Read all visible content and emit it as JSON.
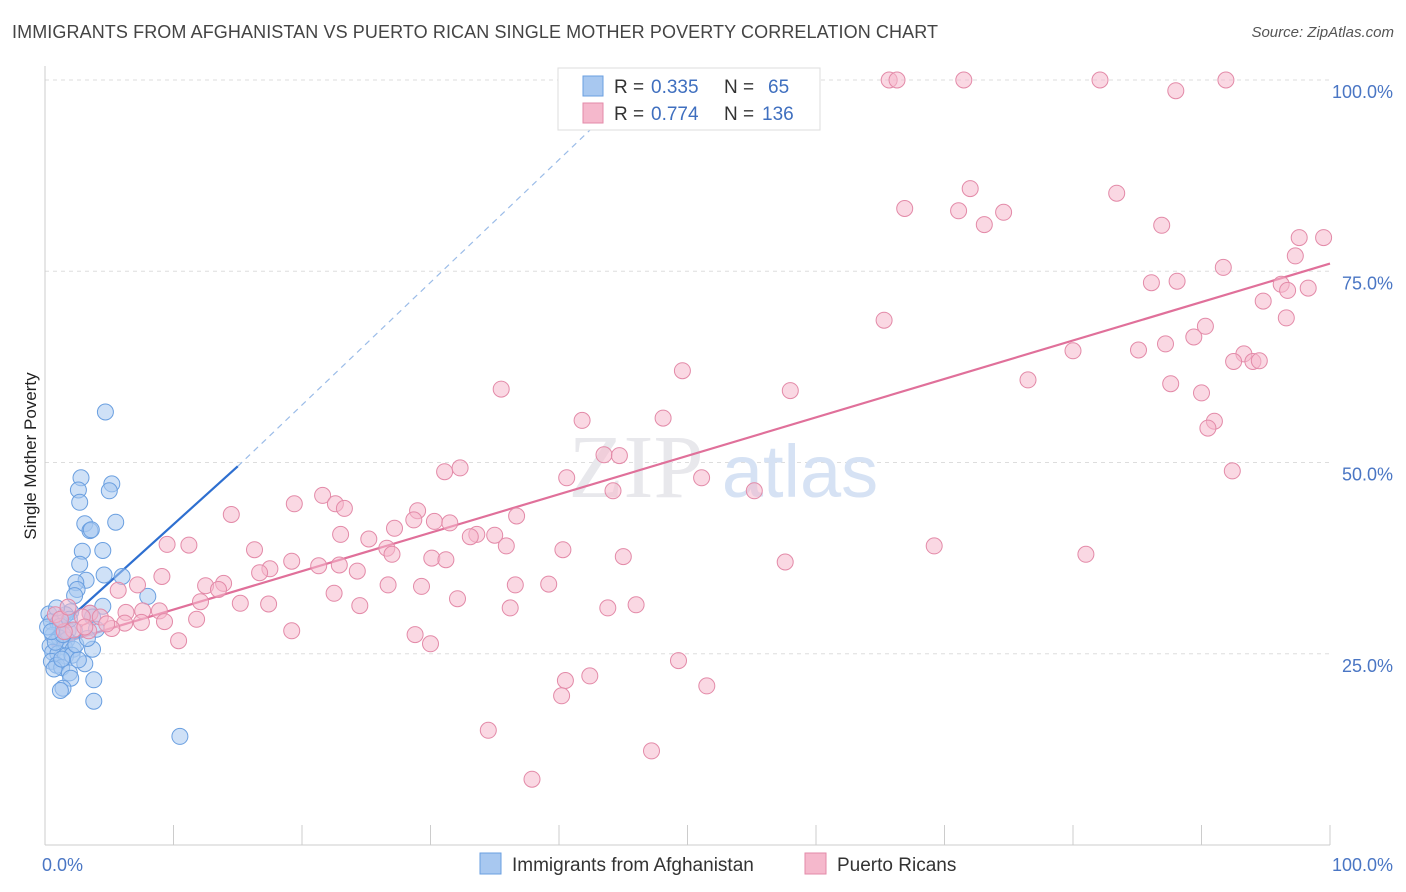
{
  "header": {
    "title": "IMMIGRANTS FROM AFGHANISTAN VS PUERTO RICAN SINGLE MOTHER POVERTY CORRELATION CHART",
    "source": "Source: ZipAtlas.com"
  },
  "watermark": {
    "zip": "ZIP",
    "atlas": "atlas"
  },
  "legend": {
    "rows": [
      {
        "r_label": "R =",
        "r_value": "0.335",
        "n_label": "N =",
        "n_value": "65",
        "color": "#a8c8f0"
      },
      {
        "r_label": "R =",
        "r_value": "0.774",
        "n_label": "N =",
        "n_value": "136",
        "color": "#f5b8cc"
      }
    ]
  },
  "bottom_legend": [
    {
      "label": "Immigrants from Afghanistan",
      "color": "#a8c8f0"
    },
    {
      "label": "Puerto Ricans",
      "color": "#f5b8cc"
    }
  ],
  "chart_data": {
    "type": "scatter",
    "title": "IMMIGRANTS FROM AFGHANISTAN VS PUERTO RICAN SINGLE MOTHER POVERTY CORRELATION CHART",
    "ylabel": "Single Mother Poverty",
    "xlabel": "",
    "xlim": [
      0,
      100
    ],
    "ylim": [
      0,
      105
    ],
    "x_tick_labels": [
      "0.0%",
      "100.0%"
    ],
    "y_ticks": [
      {
        "value": 25,
        "label": "25.0%"
      },
      {
        "value": 50,
        "label": "50.0%"
      },
      {
        "value": 75,
        "label": "75.0%"
      },
      {
        "value": 100,
        "label": "100.0%"
      }
    ],
    "grid": "dashed-horizontal",
    "legend_position": "top-center",
    "series": [
      {
        "name": "Immigrants from Afghanistan",
        "color": "#6a9fe0",
        "fill": "#a8c8f0",
        "trend": {
          "x": [
            0.5,
            15
          ],
          "y": [
            27.5,
            49.5
          ],
          "extended_to": [
            44,
            96
          ]
        },
        "points": [
          [
            2.8,
            48.0
          ],
          [
            2.6,
            46.4
          ],
          [
            2.7,
            44.8
          ],
          [
            5.2,
            47.2
          ],
          [
            5.0,
            46.3
          ],
          [
            4.7,
            56.6
          ],
          [
            3.1,
            42.0
          ],
          [
            3.5,
            41.1
          ],
          [
            3.6,
            41.2
          ],
          [
            5.5,
            42.2
          ],
          [
            4.5,
            38.5
          ],
          [
            2.9,
            38.4
          ],
          [
            2.7,
            36.7
          ],
          [
            3.2,
            34.6
          ],
          [
            4.6,
            35.3
          ],
          [
            6.0,
            35.1
          ],
          [
            2.4,
            34.3
          ],
          [
            2.5,
            33.4
          ],
          [
            2.3,
            32.6
          ],
          [
            2.0,
            30.5
          ],
          [
            4.5,
            31.2
          ],
          [
            8.0,
            32.5
          ],
          [
            0.3,
            30.2
          ],
          [
            0.5,
            29.2
          ],
          [
            1.0,
            29.0
          ],
          [
            1.6,
            30.1
          ],
          [
            3.5,
            30.3
          ],
          [
            3.7,
            29.8
          ],
          [
            1.2,
            28.6
          ],
          [
            1.8,
            28.0
          ],
          [
            2.3,
            28.0
          ],
          [
            4.0,
            28.2
          ],
          [
            0.6,
            27.4
          ],
          [
            1.1,
            27.1
          ],
          [
            1.7,
            26.8
          ],
          [
            0.4,
            26.0
          ],
          [
            1.5,
            25.9
          ],
          [
            2.2,
            25.6
          ],
          [
            3.7,
            25.6
          ],
          [
            0.6,
            25.2
          ],
          [
            1.0,
            25.0
          ],
          [
            1.6,
            24.7
          ],
          [
            2.1,
            24.8
          ],
          [
            0.5,
            24.0
          ],
          [
            0.9,
            23.5
          ],
          [
            1.3,
            23.2
          ],
          [
            3.1,
            23.7
          ],
          [
            0.7,
            23.0
          ],
          [
            1.9,
            22.5
          ],
          [
            2.0,
            21.8
          ],
          [
            3.8,
            21.6
          ],
          [
            1.4,
            20.5
          ],
          [
            1.2,
            20.2
          ],
          [
            3.8,
            18.8
          ],
          [
            10.5,
            14.2
          ],
          [
            0.8,
            26.5
          ],
          [
            1.4,
            27.5
          ],
          [
            2.6,
            24.2
          ],
          [
            0.2,
            28.5
          ],
          [
            1.9,
            29.5
          ],
          [
            0.9,
            31.0
          ],
          [
            2.4,
            26.2
          ],
          [
            1.3,
            24.3
          ],
          [
            0.5,
            27.9
          ],
          [
            3.3,
            27.0
          ]
        ]
      },
      {
        "name": "Puerto Ricans",
        "color": "#e38aa8",
        "fill": "#f5b8cc",
        "trend": {
          "x": [
            0.5,
            100
          ],
          "y": [
            26.0,
            76.0
          ]
        },
        "points": [
          [
            65.7,
            100.0
          ],
          [
            66.3,
            100.0
          ],
          [
            71.5,
            100.0
          ],
          [
            82.1,
            100.0
          ],
          [
            91.9,
            100.0
          ],
          [
            88.0,
            98.6
          ],
          [
            72.0,
            85.8
          ],
          [
            83.4,
            85.2
          ],
          [
            66.9,
            83.2
          ],
          [
            71.1,
            82.9
          ],
          [
            74.6,
            82.7
          ],
          [
            73.1,
            81.1
          ],
          [
            86.9,
            81.0
          ],
          [
            97.6,
            79.4
          ],
          [
            99.5,
            79.4
          ],
          [
            97.3,
            77.0
          ],
          [
            91.7,
            75.5
          ],
          [
            86.1,
            73.5
          ],
          [
            88.1,
            73.7
          ],
          [
            96.2,
            73.3
          ],
          [
            94.8,
            71.1
          ],
          [
            96.7,
            72.5
          ],
          [
            98.3,
            72.8
          ],
          [
            96.6,
            68.9
          ],
          [
            65.3,
            68.6
          ],
          [
            90.3,
            67.8
          ],
          [
            89.4,
            66.4
          ],
          [
            85.1,
            64.7
          ],
          [
            87.2,
            65.5
          ],
          [
            80.0,
            64.6
          ],
          [
            93.3,
            64.2
          ],
          [
            92.5,
            63.2
          ],
          [
            94.0,
            63.2
          ],
          [
            94.5,
            63.3
          ],
          [
            49.6,
            62.0
          ],
          [
            58.0,
            59.4
          ],
          [
            76.5,
            60.8
          ],
          [
            87.6,
            60.3
          ],
          [
            90.0,
            59.1
          ],
          [
            35.5,
            59.6
          ],
          [
            48.1,
            55.8
          ],
          [
            41.8,
            55.5
          ],
          [
            91.0,
            55.4
          ],
          [
            90.5,
            54.5
          ],
          [
            43.5,
            51.0
          ],
          [
            44.7,
            50.9
          ],
          [
            32.3,
            49.3
          ],
          [
            31.1,
            48.8
          ],
          [
            51.1,
            48.0
          ],
          [
            40.6,
            48.0
          ],
          [
            92.4,
            48.9
          ],
          [
            44.2,
            46.3
          ],
          [
            55.2,
            46.3
          ],
          [
            21.6,
            45.7
          ],
          [
            19.4,
            44.6
          ],
          [
            22.6,
            44.6
          ],
          [
            29.0,
            43.7
          ],
          [
            36.7,
            43.0
          ],
          [
            14.5,
            43.2
          ],
          [
            28.7,
            42.5
          ],
          [
            30.3,
            42.3
          ],
          [
            23.3,
            44.0
          ],
          [
            31.5,
            42.1
          ],
          [
            27.2,
            41.4
          ],
          [
            33.6,
            40.6
          ],
          [
            35.0,
            40.5
          ],
          [
            33.1,
            40.3
          ],
          [
            9.5,
            39.3
          ],
          [
            11.2,
            39.2
          ],
          [
            23.0,
            40.6
          ],
          [
            25.2,
            40.0
          ],
          [
            35.9,
            39.1
          ],
          [
            26.6,
            38.8
          ],
          [
            16.3,
            38.6
          ],
          [
            27.0,
            38.0
          ],
          [
            30.1,
            37.5
          ],
          [
            31.2,
            37.3
          ],
          [
            69.2,
            39.1
          ],
          [
            19.2,
            37.1
          ],
          [
            22.9,
            36.6
          ],
          [
            21.3,
            36.5
          ],
          [
            17.5,
            36.1
          ],
          [
            16.7,
            35.6
          ],
          [
            9.1,
            35.1
          ],
          [
            24.3,
            35.8
          ],
          [
            13.9,
            34.2
          ],
          [
            7.2,
            34.0
          ],
          [
            40.3,
            38.6
          ],
          [
            45.0,
            37.7
          ],
          [
            57.6,
            37.0
          ],
          [
            81.0,
            38.0
          ],
          [
            29.3,
            33.8
          ],
          [
            26.7,
            34.0
          ],
          [
            36.6,
            34.0
          ],
          [
            39.2,
            34.1
          ],
          [
            22.5,
            32.9
          ],
          [
            32.1,
            32.2
          ],
          [
            12.5,
            33.9
          ],
          [
            5.7,
            33.3
          ],
          [
            17.4,
            31.5
          ],
          [
            12.1,
            31.8
          ],
          [
            7.6,
            30.6
          ],
          [
            8.9,
            30.6
          ],
          [
            3.5,
            30.3
          ],
          [
            6.3,
            30.4
          ],
          [
            4.3,
            29.8
          ],
          [
            11.8,
            29.5
          ],
          [
            9.3,
            29.2
          ],
          [
            46.0,
            31.4
          ],
          [
            36.2,
            31.0
          ],
          [
            24.5,
            31.3
          ],
          [
            43.8,
            31.0
          ],
          [
            6.2,
            29.0
          ],
          [
            5.2,
            28.3
          ],
          [
            2.2,
            28.1
          ],
          [
            3.4,
            28.0
          ],
          [
            1.5,
            27.9
          ],
          [
            19.2,
            28.0
          ],
          [
            28.8,
            27.5
          ],
          [
            10.4,
            26.7
          ],
          [
            30.0,
            26.3
          ],
          [
            49.3,
            24.1
          ],
          [
            42.4,
            22.1
          ],
          [
            40.5,
            21.5
          ],
          [
            40.2,
            19.5
          ],
          [
            51.5,
            20.8
          ],
          [
            34.5,
            15.0
          ],
          [
            37.9,
            8.6
          ],
          [
            47.2,
            12.3
          ],
          [
            0.8,
            30.1
          ],
          [
            1.2,
            29.5
          ],
          [
            2.9,
            29.8
          ],
          [
            4.8,
            28.9
          ],
          [
            7.5,
            29.1
          ],
          [
            1.8,
            31.1
          ],
          [
            3.1,
            28.5
          ],
          [
            13.5,
            33.4
          ],
          [
            15.2,
            31.6
          ]
        ]
      }
    ]
  }
}
